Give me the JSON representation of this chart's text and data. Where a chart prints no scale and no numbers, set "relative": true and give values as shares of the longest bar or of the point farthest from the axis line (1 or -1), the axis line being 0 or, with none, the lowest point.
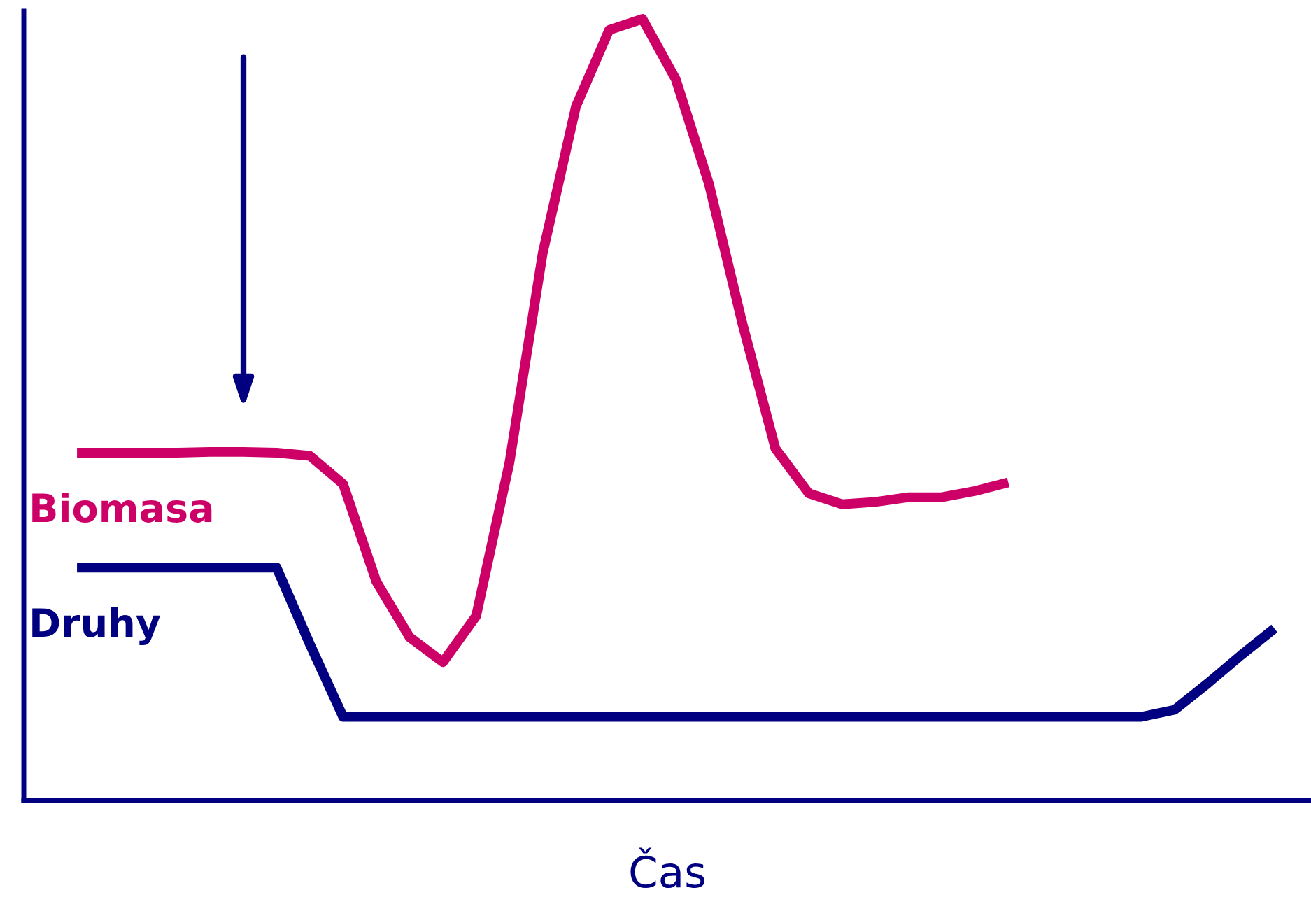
{
  "chart_data": {
    "type": "line",
    "xlabel": "Čas",
    "relative": true,
    "grid": false,
    "legend": false,
    "marker": "none",
    "line_style": "solid",
    "categories": [
      null,
      null,
      null,
      null,
      null,
      null,
      null,
      null,
      null,
      null,
      null,
      null,
      null,
      null,
      null,
      null,
      null,
      null,
      null,
      null,
      null,
      null,
      null,
      null,
      null,
      null,
      null,
      null,
      null,
      null,
      null,
      null,
      null,
      null,
      null,
      null,
      null
    ],
    "series": [
      {
        "name": "Biomasa",
        "color": "#cc0066",
        "values": [
          0.445,
          0.445,
          0.445,
          0.445,
          0.446,
          0.446,
          0.445,
          0.441,
          0.405,
          0.28,
          0.209,
          0.177,
          0.236,
          0.432,
          0.7,
          0.888,
          0.986,
          1,
          0.923,
          0.789,
          0.611,
          0.45,
          0.393,
          0.379,
          0.382,
          0.388,
          0.388,
          0.396,
          0.407,
          null,
          null,
          null,
          null,
          null,
          null,
          null,
          null
        ]
      },
      {
        "name": "Druhy",
        "color": "#000080",
        "values": [
          0.298,
          0.298,
          0.298,
          0.298,
          0.298,
          0.298,
          0.298,
          0.2,
          0.107,
          0.107,
          0.107,
          0.107,
          0.107,
          0.107,
          0.107,
          0.107,
          0.107,
          0.107,
          0.107,
          0.107,
          0.107,
          0.107,
          0.107,
          0.107,
          0.107,
          0.107,
          0.107,
          0.107,
          0.107,
          0.107,
          0.107,
          0.107,
          0.107,
          0.116,
          0.15,
          0.186,
          0.22
        ]
      }
    ]
  }
}
